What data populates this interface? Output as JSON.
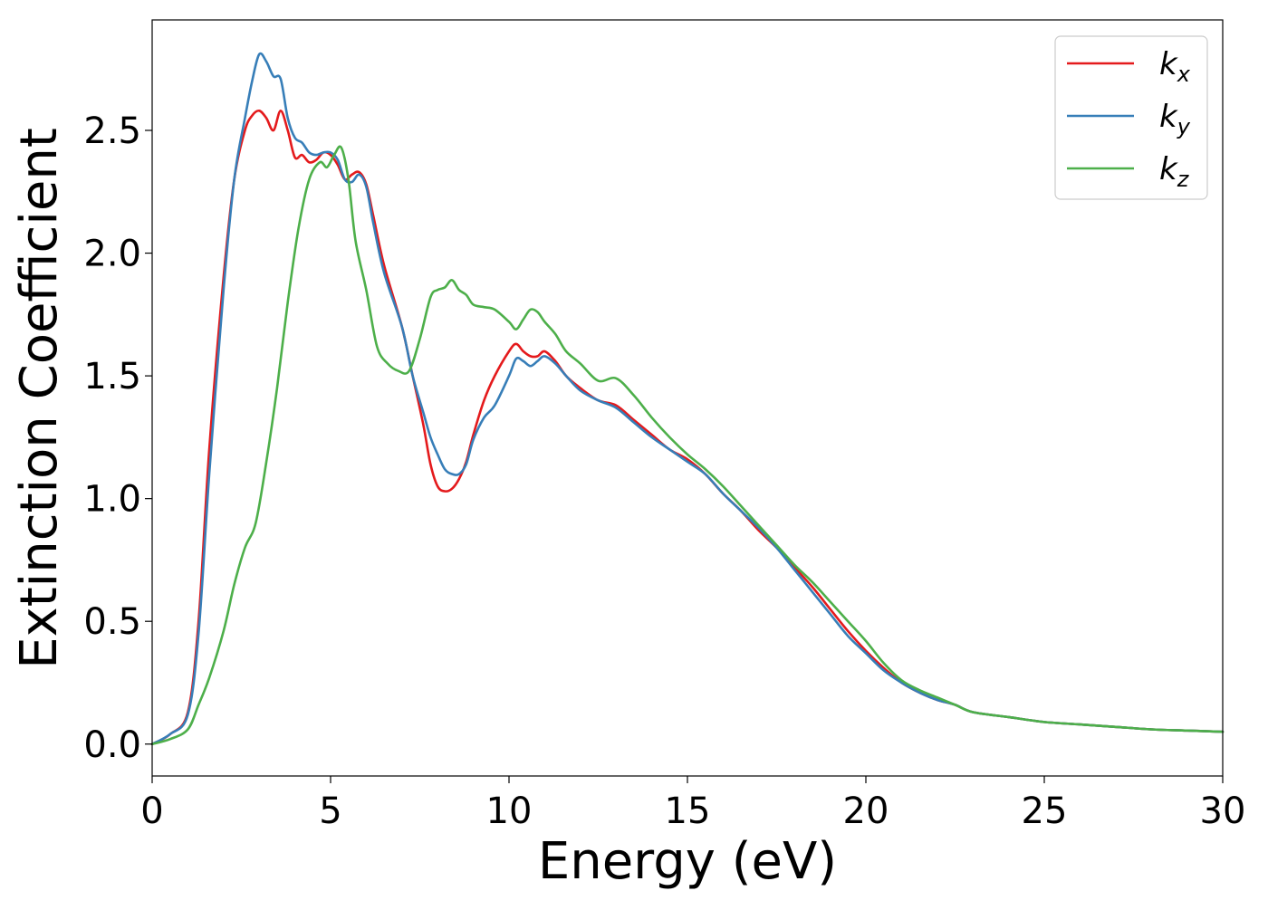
{
  "chart_data": {
    "type": "line",
    "xlabel": "Energy (eV)",
    "ylabel": "Extinction Coefficient",
    "xlim": [
      0,
      30
    ],
    "ylim": [
      -0.13,
      2.95
    ],
    "xticks": [
      0,
      5,
      10,
      15,
      20,
      25,
      30
    ],
    "xtick_labels": [
      "0",
      "5",
      "10",
      "15",
      "20",
      "25",
      "30"
    ],
    "yticks": [
      0.0,
      0.5,
      1.0,
      1.5,
      2.0,
      2.5
    ],
    "ytick_labels": [
      "0.0",
      "0.5",
      "1.0",
      "1.5",
      "2.0",
      "2.5"
    ],
    "grid": false,
    "legend_position": "top-right",
    "series": [
      {
        "name": "k",
        "subscript": "x",
        "color": "#e41a1c",
        "x": [
          0,
          0.5,
          1,
          1.3,
          1.6,
          2,
          2.3,
          2.6,
          2.8,
          3,
          3.2,
          3.4,
          3.6,
          3.8,
          4,
          4.2,
          4.4,
          4.6,
          4.8,
          5,
          5.2,
          5.4,
          5.6,
          5.8,
          6,
          6.2,
          6.5,
          7,
          7.3,
          7.6,
          7.8,
          8,
          8.2,
          8.4,
          8.6,
          8.8,
          9,
          9.3,
          9.6,
          10,
          10.2,
          10.4,
          10.6,
          10.8,
          11,
          11.3,
          11.6,
          12,
          12.5,
          13,
          13.5,
          14,
          14.5,
          15,
          15.5,
          16,
          16.5,
          17,
          17.5,
          18,
          18.5,
          19,
          19.5,
          20,
          20.5,
          21,
          21.5,
          22,
          22.5,
          23,
          24,
          25,
          26,
          27,
          28,
          29,
          30
        ],
        "y": [
          0,
          0.04,
          0.13,
          0.5,
          1.2,
          1.9,
          2.3,
          2.5,
          2.56,
          2.58,
          2.55,
          2.5,
          2.58,
          2.5,
          2.39,
          2.4,
          2.37,
          2.38,
          2.41,
          2.4,
          2.36,
          2.3,
          2.32,
          2.33,
          2.28,
          2.15,
          1.95,
          1.7,
          1.5,
          1.3,
          1.14,
          1.05,
          1.03,
          1.04,
          1.08,
          1.15,
          1.26,
          1.4,
          1.5,
          1.6,
          1.63,
          1.6,
          1.58,
          1.58,
          1.6,
          1.56,
          1.5,
          1.45,
          1.4,
          1.38,
          1.32,
          1.26,
          1.2,
          1.16,
          1.1,
          1.02,
          0.95,
          0.87,
          0.8,
          0.72,
          0.64,
          0.55,
          0.46,
          0.38,
          0.31,
          0.25,
          0.21,
          0.18,
          0.16,
          0.13,
          0.11,
          0.09,
          0.08,
          0.07,
          0.06,
          0.055,
          0.05
        ]
      },
      {
        "name": "k",
        "subscript": "y",
        "color": "#377eb8",
        "x": [
          0,
          0.5,
          1,
          1.3,
          1.6,
          2,
          2.3,
          2.6,
          2.8,
          3,
          3.2,
          3.4,
          3.6,
          3.8,
          4,
          4.2,
          4.4,
          4.6,
          4.8,
          5,
          5.2,
          5.4,
          5.6,
          5.8,
          6,
          6.2,
          6.5,
          7,
          7.3,
          7.6,
          7.8,
          8,
          8.2,
          8.4,
          8.6,
          8.8,
          9,
          9.3,
          9.6,
          10,
          10.2,
          10.4,
          10.6,
          10.8,
          11,
          11.3,
          11.6,
          12,
          12.5,
          13,
          13.5,
          14,
          14.5,
          15,
          15.5,
          16,
          16.5,
          17,
          17.5,
          18,
          18.5,
          19,
          19.5,
          20,
          20.5,
          21,
          21.5,
          22,
          22.5,
          23,
          24,
          25,
          26,
          27,
          28,
          29,
          30
        ],
        "y": [
          0,
          0.04,
          0.12,
          0.45,
          1.1,
          1.85,
          2.3,
          2.55,
          2.7,
          2.81,
          2.78,
          2.72,
          2.71,
          2.55,
          2.47,
          2.45,
          2.41,
          2.4,
          2.41,
          2.41,
          2.38,
          2.3,
          2.29,
          2.32,
          2.27,
          2.12,
          1.92,
          1.7,
          1.5,
          1.35,
          1.25,
          1.18,
          1.12,
          1.1,
          1.1,
          1.14,
          1.24,
          1.33,
          1.38,
          1.5,
          1.57,
          1.56,
          1.54,
          1.56,
          1.58,
          1.55,
          1.5,
          1.44,
          1.4,
          1.37,
          1.31,
          1.25,
          1.2,
          1.15,
          1.1,
          1.02,
          0.95,
          0.88,
          0.8,
          0.71,
          0.62,
          0.53,
          0.44,
          0.37,
          0.3,
          0.25,
          0.21,
          0.18,
          0.16,
          0.13,
          0.11,
          0.09,
          0.08,
          0.07,
          0.06,
          0.055,
          0.05
        ]
      },
      {
        "name": "k",
        "subscript": "z",
        "color": "#4daf4a",
        "x": [
          0,
          0.5,
          1,
          1.3,
          1.6,
          2,
          2.3,
          2.6,
          2.9,
          3.2,
          3.5,
          3.8,
          4.1,
          4.4,
          4.7,
          4.9,
          5.1,
          5.3,
          5.5,
          5.7,
          6,
          6.3,
          6.6,
          6.9,
          7.2,
          7.5,
          7.8,
          8,
          8.2,
          8.4,
          8.6,
          8.8,
          9,
          9.3,
          9.6,
          10,
          10.2,
          10.4,
          10.6,
          10.8,
          11,
          11.3,
          11.6,
          12,
          12.5,
          13,
          13.5,
          14,
          14.5,
          15,
          15.5,
          16,
          16.5,
          17,
          17.5,
          18,
          18.5,
          19,
          19.5,
          20,
          20.5,
          21,
          21.5,
          22,
          22.5,
          23,
          24,
          25,
          26,
          27,
          28,
          29,
          30
        ],
        "y": [
          0,
          0.02,
          0.06,
          0.16,
          0.27,
          0.46,
          0.65,
          0.8,
          0.9,
          1.15,
          1.45,
          1.8,
          2.1,
          2.3,
          2.37,
          2.35,
          2.4,
          2.43,
          2.3,
          2.05,
          1.85,
          1.62,
          1.55,
          1.52,
          1.52,
          1.65,
          1.82,
          1.85,
          1.86,
          1.89,
          1.85,
          1.83,
          1.79,
          1.78,
          1.77,
          1.72,
          1.69,
          1.73,
          1.77,
          1.76,
          1.72,
          1.67,
          1.6,
          1.55,
          1.48,
          1.49,
          1.42,
          1.33,
          1.25,
          1.18,
          1.12,
          1.05,
          0.97,
          0.89,
          0.81,
          0.73,
          0.66,
          0.58,
          0.5,
          0.42,
          0.33,
          0.26,
          0.22,
          0.19,
          0.16,
          0.13,
          0.11,
          0.09,
          0.08,
          0.07,
          0.06,
          0.055,
          0.05
        ]
      }
    ]
  }
}
